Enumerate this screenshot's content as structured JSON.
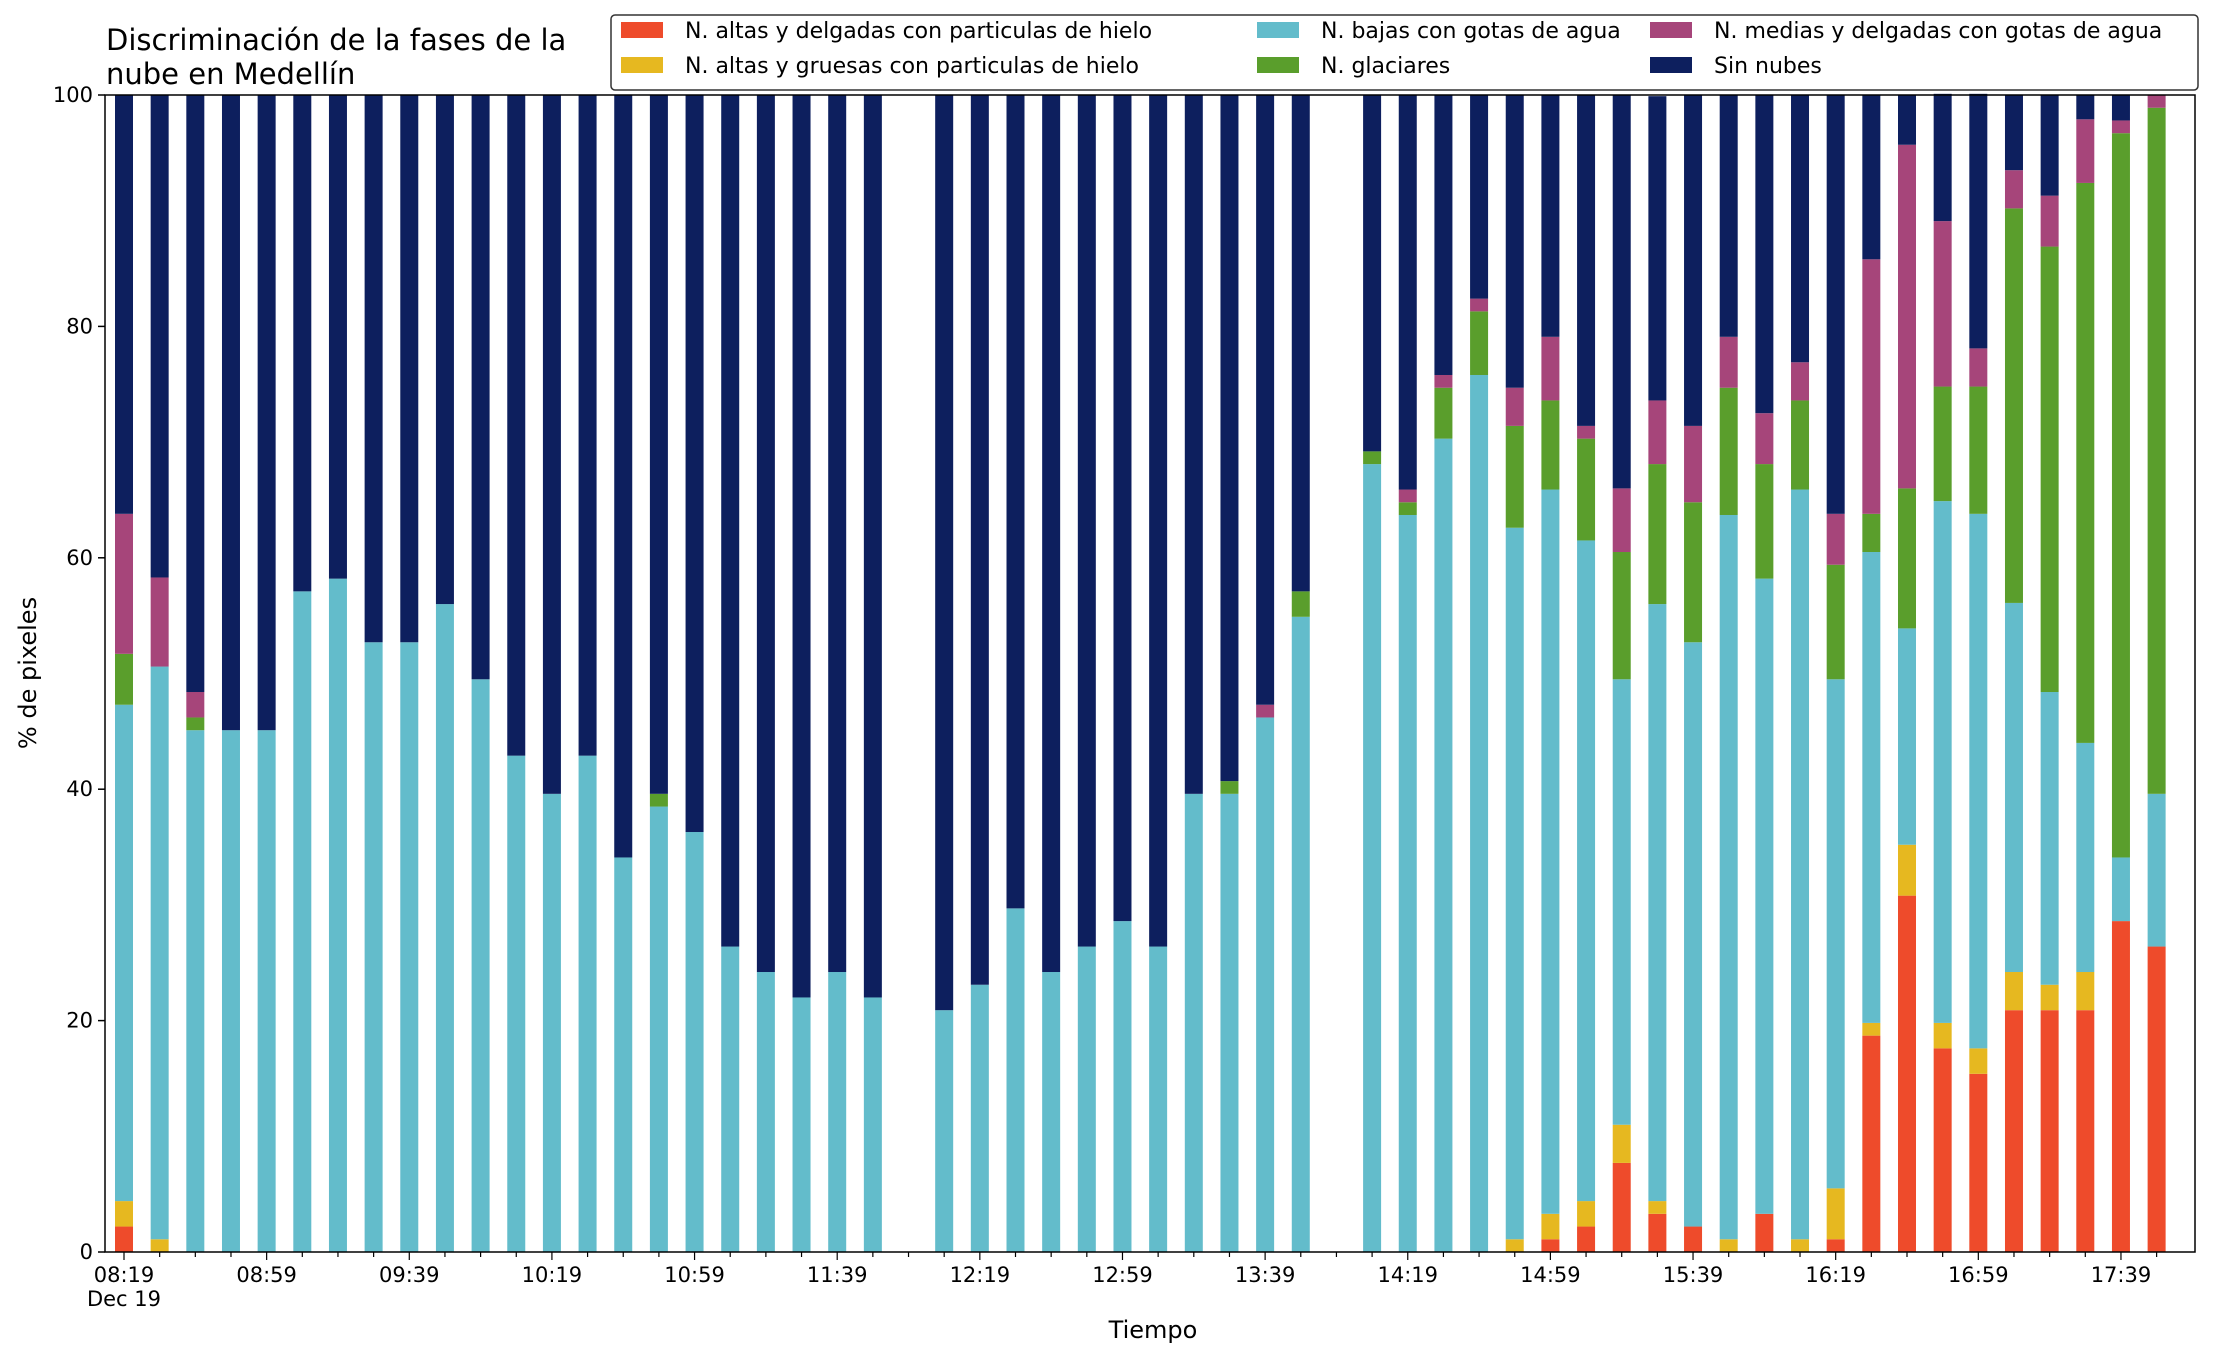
{
  "chart_data": {
    "type": "bar",
    "stacked": true,
    "title": "Discriminación de la fases de la nube en Medellín",
    "title_lines": [
      "Discriminación de la fases de la",
      "nube en Medellín"
    ],
    "xlabel": "Tiempo",
    "ylabel": "% de pixeles",
    "ylim": [
      0,
      100
    ],
    "yticks": [
      0,
      20,
      40,
      60,
      80,
      100
    ],
    "legend_position": "top-right",
    "grid": false,
    "x_tick_labels": [
      "08:19",
      "08:59",
      "09:39",
      "10:19",
      "10:59",
      "11:39",
      "12:19",
      "12:59",
      "13:39",
      "14:19",
      "14:59",
      "15:39",
      "16:19",
      "16:59",
      "17:39"
    ],
    "x_tick_sublabel": "Dec 19",
    "x_tick_slots": [
      0,
      4,
      8,
      12,
      16,
      20,
      24,
      28,
      32,
      36,
      40,
      44,
      48,
      52,
      56
    ],
    "n_slots": 58,
    "categories": [
      "08:19",
      "08:29",
      "08:39",
      "08:49",
      "08:59",
      "09:09",
      "09:19",
      "09:29",
      "09:39",
      "09:49",
      "09:59",
      "10:09",
      "10:19",
      "10:29",
      "10:39",
      "10:49",
      "10:59",
      "11:09",
      "11:19",
      "11:29",
      "11:39",
      "11:49",
      "12:09",
      "12:19",
      "12:29",
      "12:39",
      "12:49",
      "12:59",
      "13:09",
      "13:19",
      "13:29",
      "13:39",
      "13:49",
      "14:09",
      "14:19",
      "14:29",
      "14:39",
      "14:49",
      "14:59",
      "15:09",
      "15:19",
      "15:29",
      "15:39",
      "15:49",
      "15:59",
      "16:09",
      "16:19",
      "16:29",
      "16:39",
      "16:49",
      "16:59",
      "17:09",
      "17:19",
      "17:29",
      "17:39",
      "17:49"
    ],
    "slot_index": [
      0,
      1,
      2,
      3,
      4,
      5,
      6,
      7,
      8,
      9,
      10,
      11,
      12,
      13,
      14,
      15,
      16,
      17,
      18,
      19,
      20,
      21,
      23,
      24,
      25,
      26,
      27,
      28,
      29,
      30,
      31,
      32,
      33,
      35,
      36,
      37,
      38,
      39,
      40,
      41,
      42,
      43,
      44,
      45,
      46,
      47,
      48,
      49,
      50,
      51,
      52,
      53,
      54,
      55,
      56,
      57
    ],
    "series": [
      {
        "name": "N. altas y delgadas con particulas de hielo",
        "color": "#ee4b2b",
        "values": [
          2.2,
          0,
          0,
          0,
          0,
          0,
          0,
          0,
          0,
          0,
          0,
          0,
          0,
          0,
          0,
          0,
          0,
          0,
          0,
          0,
          0,
          0,
          0,
          0,
          0,
          0,
          0,
          0,
          0,
          0,
          0,
          0,
          0,
          0,
          0,
          0,
          0,
          0,
          1.1,
          2.2,
          7.7,
          3.3,
          2.2,
          0,
          3.3,
          0,
          1.1,
          18.7,
          30.8,
          17.6,
          15.4,
          20.9,
          20.9,
          20.9,
          28.6,
          26.4
        ]
      },
      {
        "name": "N. altas y gruesas con particulas de hielo",
        "color": "#e6b820",
        "values": [
          2.2,
          1.1,
          0,
          0,
          0,
          0,
          0,
          0,
          0,
          0,
          0,
          0,
          0,
          0,
          0,
          0,
          0,
          0,
          0,
          0,
          0,
          0,
          0,
          0,
          0,
          0,
          0,
          0,
          0,
          0,
          0,
          0,
          0,
          0,
          0,
          0,
          0,
          1.1,
          2.2,
          2.2,
          3.3,
          1.1,
          0,
          1.1,
          0,
          1.1,
          4.4,
          1.1,
          4.4,
          2.2,
          2.2,
          3.3,
          2.2,
          3.3,
          0,
          0
        ]
      },
      {
        "name": "N. bajas con gotas de agua",
        "color": "#63bccb",
        "values": [
          42.9,
          49.5,
          45.1,
          45.1,
          45.1,
          57.1,
          58.2,
          52.7,
          52.7,
          56.0,
          49.5,
          42.9,
          39.6,
          42.9,
          34.1,
          38.5,
          36.3,
          26.4,
          24.2,
          22.0,
          24.2,
          22.0,
          20.9,
          23.1,
          29.7,
          24.2,
          26.4,
          28.6,
          26.4,
          39.6,
          39.6,
          46.2,
          54.9,
          68.1,
          63.7,
          70.3,
          75.8,
          61.5,
          62.6,
          57.1,
          38.5,
          51.6,
          50.5,
          62.6,
          54.9,
          64.8,
          44.0,
          40.7,
          18.7,
          45.1,
          46.2,
          31.9,
          25.3,
          19.8,
          5.5,
          13.2
        ]
      },
      {
        "name": "N. glaciares",
        "color": "#5a9e2c",
        "values": [
          4.4,
          0,
          1.1,
          0,
          0,
          0,
          0,
          0,
          0,
          0,
          0,
          0,
          0,
          0,
          0,
          1.1,
          0,
          0,
          0,
          0,
          0,
          0,
          0,
          0,
          0,
          0,
          0,
          0,
          0,
          0,
          1.1,
          0,
          2.2,
          1.1,
          1.1,
          4.4,
          5.5,
          8.8,
          7.7,
          8.8,
          11.0,
          12.1,
          12.1,
          11.0,
          9.9,
          7.7,
          9.9,
          3.3,
          12.1,
          9.9,
          11.0,
          34.1,
          38.5,
          48.4,
          62.6,
          59.3
        ]
      },
      {
        "name": "N. medias y delgadas con gotas de agua",
        "color": "#a6457a",
        "values": [
          12.1,
          7.7,
          2.2,
          0,
          0,
          0,
          0,
          0,
          0,
          0,
          0,
          0,
          0,
          0,
          0,
          0,
          0,
          0,
          0,
          0,
          0,
          0,
          0,
          0,
          0,
          0,
          0,
          0,
          0,
          0,
          0,
          1.1,
          0,
          0,
          1.1,
          1.1,
          1.1,
          3.3,
          5.5,
          1.1,
          5.5,
          5.5,
          6.6,
          4.4,
          4.4,
          3.3,
          4.4,
          22.0,
          29.7,
          14.3,
          3.3,
          3.3,
          4.4,
          5.5,
          1.1,
          1.1
        ]
      },
      {
        "name": "Sin nubes",
        "color": "#0d1f5e",
        "values": [
          36.2,
          41.7,
          51.6,
          54.9,
          54.9,
          42.9,
          41.8,
          47.3,
          47.3,
          44.0,
          50.5,
          57.1,
          60.4,
          57.1,
          65.9,
          60.4,
          63.7,
          73.6,
          75.8,
          78.0,
          75.8,
          78.0,
          79.1,
          76.9,
          70.3,
          75.8,
          73.6,
          71.4,
          73.6,
          60.4,
          59.3,
          52.7,
          42.9,
          30.8,
          34.1,
          24.2,
          17.6,
          25.3,
          20.9,
          28.6,
          34.0,
          26.3,
          28.6,
          20.9,
          27.5,
          23.1,
          36.2,
          14.2,
          4.3,
          11.0,
          22.0,
          6.5,
          8.7,
          2.1,
          2.2,
          0
        ]
      }
    ]
  }
}
